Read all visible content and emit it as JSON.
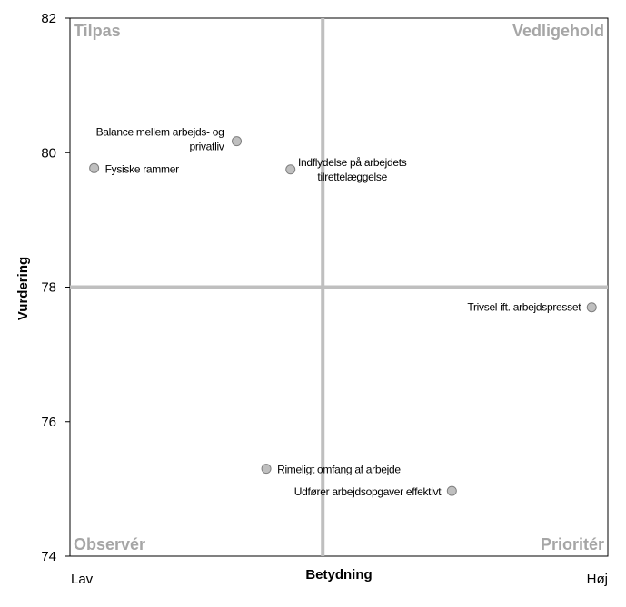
{
  "chart_data": {
    "type": "scatter",
    "title": "",
    "xlabel": "Betydning",
    "ylabel": "Vurdering",
    "x_start_label": "Lav",
    "x_end_label": "Høj",
    "xlim": [
      0,
      100
    ],
    "ylim": [
      74,
      82
    ],
    "yticks": [
      "74",
      "76",
      "78",
      "80",
      "82"
    ],
    "x_divider": 47,
    "y_divider": 78,
    "grid": false,
    "colors": {
      "point_fill": "#bfbfbf",
      "point_stroke": "#7f7f7f",
      "divider": "#bfbfbf",
      "quadrant_text": "#a6a6a6"
    },
    "quadrants": {
      "top_left": "Tilpas",
      "top_right": "Vedligehold",
      "bottom_left": "Observér",
      "bottom_right": "Prioritér"
    },
    "points": [
      {
        "label": "Balance mellem arbejds- og privatliv",
        "x": 31,
        "y": 80.17
      },
      {
        "label": "Fysiske rammer",
        "x": 4.5,
        "y": 79.77
      },
      {
        "label": "Indflydelse på arbejdets tilrettelæggelse",
        "x": 41,
        "y": 79.75
      },
      {
        "label": "Trivsel ift. arbejdspresset",
        "x": 97,
        "y": 77.7
      },
      {
        "label": "Rimeligt omfang af arbejde",
        "x": 36.5,
        "y": 75.3
      },
      {
        "label": "Udfører arbejdsopgaver effektivt",
        "x": 71,
        "y": 74.97
      }
    ]
  }
}
